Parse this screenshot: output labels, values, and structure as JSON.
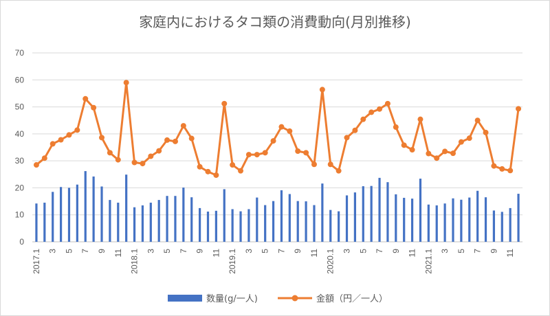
{
  "chart_data": {
    "type": "bar+line",
    "title": "家庭内におけるタコ類の消費動向(月別推移)",
    "ylim": [
      0,
      70
    ],
    "yticks": [
      0,
      10,
      20,
      30,
      40,
      50,
      60,
      70
    ],
    "grid": true,
    "legend_position": "bottom",
    "x_tick_labels": [
      "2017.1",
      "",
      "3",
      "",
      "5",
      "",
      "7",
      "",
      "9",
      "",
      "11",
      "",
      "2018.1",
      "",
      "3",
      "",
      "5",
      "",
      "7",
      "",
      "9",
      "",
      "11",
      "",
      "2019.1",
      "",
      "3",
      "",
      "5",
      "",
      "7",
      "",
      "9",
      "",
      "11",
      "",
      "2020.1",
      "",
      "3",
      "",
      "5",
      "",
      "7",
      "",
      "9",
      "",
      "11",
      "",
      "2021.1",
      "",
      "3",
      "",
      "5",
      "",
      "7",
      "",
      "9",
      "",
      "11",
      ""
    ],
    "series": [
      {
        "name": "数量(g/一人)",
        "type": "bar",
        "color": "#4472c4",
        "values": [
          14.2,
          14.5,
          18.5,
          20.3,
          20.0,
          21.2,
          26.2,
          24.2,
          20.5,
          15.5,
          14.5,
          24.9,
          12.8,
          13.5,
          14.5,
          15.5,
          17.0,
          17.0,
          20.1,
          16.5,
          12.5,
          11.2,
          11.5,
          19.5,
          12.1,
          11.3,
          12.1,
          16.4,
          13.6,
          15.1,
          19.1,
          17.7,
          15.1,
          15.0,
          13.6,
          21.6,
          11.8,
          11.3,
          17.2,
          18.3,
          20.6,
          20.7,
          23.7,
          22.1,
          17.6,
          16.3,
          16.0,
          23.4,
          13.8,
          13.5,
          14.2,
          16.1,
          15.6,
          16.4,
          18.9,
          16.5,
          11.6,
          11.1,
          12.5,
          17.8
        ]
      },
      {
        "name": "金額（円／一人）",
        "type": "line",
        "color": "#ed7d31",
        "values": [
          28.5,
          31.0,
          36.3,
          37.8,
          39.6,
          41.4,
          53.0,
          49.7,
          38.6,
          33.0,
          30.4,
          59.0,
          29.4,
          29.0,
          31.7,
          33.7,
          37.7,
          37.2,
          43.0,
          38.3,
          27.8,
          26.0,
          24.7,
          51.2,
          28.5,
          26.3,
          32.3,
          32.3,
          33.0,
          37.4,
          42.6,
          41.0,
          33.6,
          33.0,
          28.7,
          56.4,
          28.7,
          26.3,
          38.6,
          41.3,
          45.4,
          48.0,
          49.2,
          51.2,
          42.5,
          35.8,
          34.1,
          45.4,
          32.7,
          31.0,
          33.5,
          32.8,
          37.0,
          38.4,
          45.0,
          40.5,
          28.1,
          27.0,
          26.4,
          49.3
        ]
      }
    ]
  }
}
